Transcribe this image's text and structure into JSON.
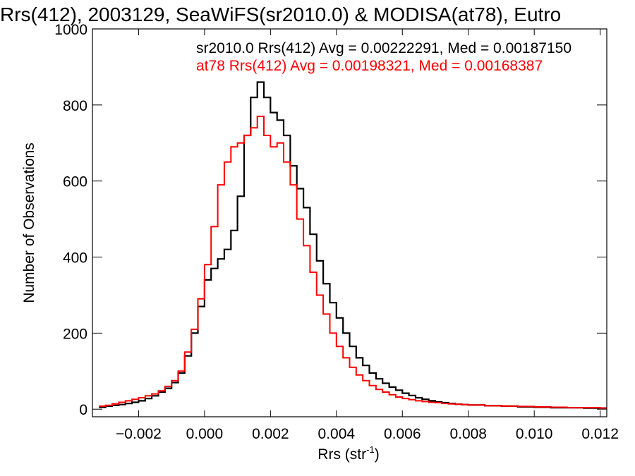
{
  "chart_data": {
    "type": "line",
    "title": "Rrs(412), 2003129, SeaWiFS(sr2010.0) & MODISA(at78), Eutro",
    "xlabel": "Rrs (str",
    "xlabel_sup": "-1",
    "xlabel_close": ")",
    "ylabel": "Number of Observations",
    "xlim": [
      -0.0034,
      0.0122
    ],
    "ylim": [
      -20,
      1000
    ],
    "x_ticks": [
      -0.002,
      0.0,
      0.002,
      0.004,
      0.006,
      0.008,
      0.01,
      0.012
    ],
    "x_tick_labels": [
      "−0.002",
      "0.000",
      "0.002",
      "0.004",
      "0.006",
      "0.008",
      "0.010",
      "0.012"
    ],
    "y_ticks": [
      0,
      200,
      400,
      600,
      800,
      1000
    ],
    "y_tick_labels": [
      "0",
      "200",
      "400",
      "600",
      "800",
      "1000"
    ],
    "grid": false,
    "legend_position": "top",
    "series": [
      {
        "name": "sr2010.0 Rrs(412) Avg = 0.00222291, Med = 0.00187150",
        "color": "#000000",
        "points": [
          [
            -0.0032,
            5
          ],
          [
            -0.003,
            8
          ],
          [
            -0.0028,
            10
          ],
          [
            -0.0026,
            12
          ],
          [
            -0.0024,
            15
          ],
          [
            -0.0022,
            18
          ],
          [
            -0.002,
            22
          ],
          [
            -0.0018,
            28
          ],
          [
            -0.0016,
            35
          ],
          [
            -0.0014,
            45
          ],
          [
            -0.0012,
            55
          ],
          [
            -0.001,
            70
          ],
          [
            -0.0008,
            95
          ],
          [
            -0.0006,
            140
          ],
          [
            -0.0004,
            200
          ],
          [
            -0.0002,
            270
          ],
          [
            0.0,
            340
          ],
          [
            0.0002,
            370
          ],
          [
            0.0004,
            395
          ],
          [
            0.0006,
            420
          ],
          [
            0.0008,
            470
          ],
          [
            0.001,
            560
          ],
          [
            0.0012,
            720
          ],
          [
            0.0014,
            820
          ],
          [
            0.0016,
            860
          ],
          [
            0.0018,
            820
          ],
          [
            0.002,
            780
          ],
          [
            0.0022,
            760
          ],
          [
            0.0024,
            720
          ],
          [
            0.0026,
            640
          ],
          [
            0.0028,
            580
          ],
          [
            0.003,
            530
          ],
          [
            0.0032,
            460
          ],
          [
            0.0034,
            390
          ],
          [
            0.0036,
            330
          ],
          [
            0.0038,
            280
          ],
          [
            0.004,
            240
          ],
          [
            0.0042,
            200
          ],
          [
            0.0044,
            165
          ],
          [
            0.0046,
            135
          ],
          [
            0.0048,
            115
          ],
          [
            0.005,
            95
          ],
          [
            0.0052,
            80
          ],
          [
            0.0054,
            68
          ],
          [
            0.0056,
            58
          ],
          [
            0.0058,
            50
          ],
          [
            0.006,
            42
          ],
          [
            0.0062,
            36
          ],
          [
            0.0064,
            30
          ],
          [
            0.0066,
            26
          ],
          [
            0.0068,
            22
          ],
          [
            0.007,
            19
          ],
          [
            0.0072,
            17
          ],
          [
            0.0074,
            15
          ],
          [
            0.0076,
            13
          ],
          [
            0.0078,
            12
          ],
          [
            0.008,
            11
          ],
          [
            0.0085,
            9
          ],
          [
            0.009,
            8
          ],
          [
            0.0095,
            6
          ],
          [
            0.01,
            5
          ],
          [
            0.0105,
            4
          ],
          [
            0.011,
            4
          ],
          [
            0.0115,
            3
          ],
          [
            0.012,
            3
          ]
        ]
      },
      {
        "name": "at78 Rrs(412) Avg = 0.00198321, Med = 0.00168387",
        "color": "#ff0000",
        "points": [
          [
            -0.0032,
            8
          ],
          [
            -0.003,
            10
          ],
          [
            -0.0028,
            14
          ],
          [
            -0.0026,
            18
          ],
          [
            -0.0024,
            22
          ],
          [
            -0.0022,
            26
          ],
          [
            -0.002,
            30
          ],
          [
            -0.0018,
            35
          ],
          [
            -0.0016,
            40
          ],
          [
            -0.0014,
            48
          ],
          [
            -0.0012,
            60
          ],
          [
            -0.001,
            75
          ],
          [
            -0.0008,
            100
          ],
          [
            -0.0006,
            150
          ],
          [
            -0.0004,
            210
          ],
          [
            -0.0002,
            290
          ],
          [
            0.0,
            380
          ],
          [
            0.0002,
            480
          ],
          [
            0.0004,
            590
          ],
          [
            0.0006,
            650
          ],
          [
            0.0008,
            690
          ],
          [
            0.001,
            700
          ],
          [
            0.0012,
            720
          ],
          [
            0.0014,
            740
          ],
          [
            0.0016,
            770
          ],
          [
            0.0018,
            720
          ],
          [
            0.002,
            690
          ],
          [
            0.0022,
            700
          ],
          [
            0.0024,
            650
          ],
          [
            0.0026,
            590
          ],
          [
            0.0028,
            500
          ],
          [
            0.003,
            430
          ],
          [
            0.0032,
            360
          ],
          [
            0.0034,
            300
          ],
          [
            0.0036,
            250
          ],
          [
            0.0038,
            200
          ],
          [
            0.004,
            165
          ],
          [
            0.0042,
            135
          ],
          [
            0.0044,
            110
          ],
          [
            0.0046,
            90
          ],
          [
            0.0048,
            75
          ],
          [
            0.005,
            62
          ],
          [
            0.0052,
            52
          ],
          [
            0.0054,
            45
          ],
          [
            0.0056,
            38
          ],
          [
            0.0058,
            32
          ],
          [
            0.006,
            28
          ],
          [
            0.0062,
            25
          ],
          [
            0.0064,
            22
          ],
          [
            0.0066,
            20
          ],
          [
            0.0068,
            18
          ],
          [
            0.007,
            17
          ],
          [
            0.0072,
            15
          ],
          [
            0.0074,
            14
          ],
          [
            0.0076,
            13
          ],
          [
            0.0078,
            12
          ],
          [
            0.008,
            11
          ],
          [
            0.0085,
            9
          ],
          [
            0.009,
            8
          ],
          [
            0.0095,
            7
          ],
          [
            0.01,
            6
          ],
          [
            0.0105,
            5
          ],
          [
            0.011,
            4
          ],
          [
            0.0115,
            4
          ],
          [
            0.012,
            3
          ]
        ]
      }
    ]
  }
}
